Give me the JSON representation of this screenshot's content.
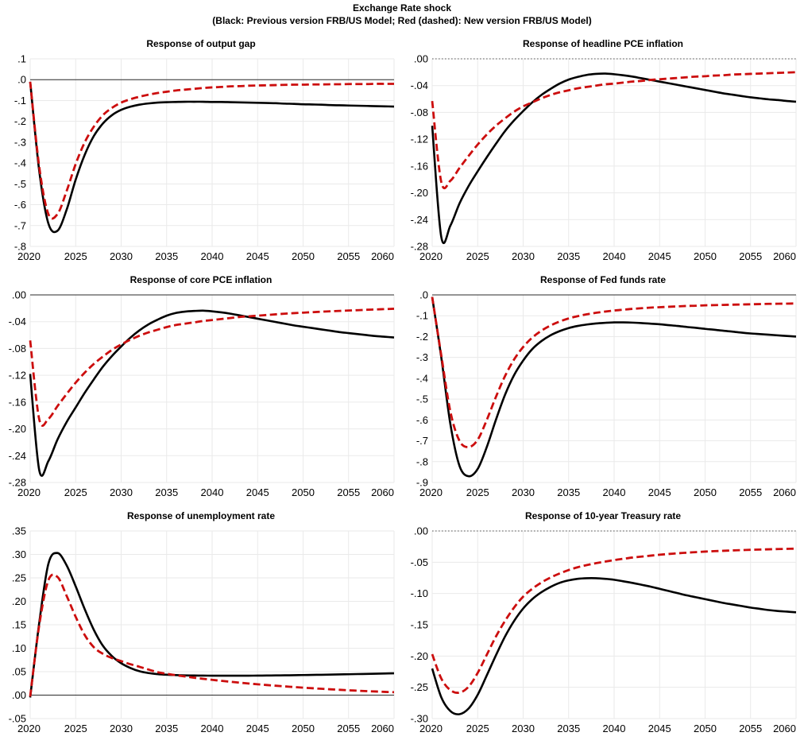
{
  "header": {
    "title": "Exchange Rate shock",
    "subtitle": "(Black: Previous version FRB/US Model; Red (dashed): New version FRB/US Model)"
  },
  "legend": {
    "black_series": "Previous version FRB/US Model",
    "red_series": "New version FRB/US Model"
  },
  "colors": {
    "previous_model": "#000000",
    "new_model": "#cc0e0e",
    "grid": "#eaeaea",
    "zero_solid": "#2b2b2b",
    "zero_dotted": "#8f8f8f"
  },
  "x_axis": {
    "start": 2020,
    "end": 2060,
    "step": 1,
    "tick_labels": [
      "2020",
      "2025",
      "2030",
      "2035",
      "2040",
      "2045",
      "2050",
      "2055",
      "2060"
    ],
    "tick_values": [
      2020,
      2025,
      2030,
      2035,
      2040,
      2045,
      2050,
      2055,
      2060
    ]
  },
  "chart_data": [
    {
      "type": "line",
      "title": "Response of output gap",
      "slug": "output-gap",
      "ylim": [
        -0.8,
        0.1
      ],
      "ytick_labels": [
        ".1",
        ".0",
        "-.1",
        "-.2",
        "-.3",
        "-.4",
        "-.5",
        "-.6",
        "-.7",
        "-.8"
      ],
      "ytick_values": [
        0.1,
        0.0,
        -0.1,
        -0.2,
        -0.3,
        -0.4,
        -0.5,
        -0.6,
        -0.7,
        -0.8
      ],
      "zeroline": "solid",
      "series": [
        {
          "name": "Previous version FRB/US Model",
          "style": "solid",
          "values": [
            -0.01,
            -0.44,
            -0.69,
            -0.725,
            -0.625,
            -0.48,
            -0.36,
            -0.27,
            -0.21,
            -0.17,
            -0.145,
            -0.13,
            -0.12,
            -0.114,
            -0.11,
            -0.108,
            -0.107,
            -0.106,
            -0.106,
            -0.106,
            -0.107,
            -0.107,
            -0.108,
            -0.109,
            -0.11,
            -0.111,
            -0.112,
            -0.113,
            -0.115,
            -0.116,
            -0.118,
            -0.119,
            -0.12,
            -0.122,
            -0.123,
            -0.124,
            -0.125,
            -0.126,
            -0.127,
            -0.128,
            -0.129
          ]
        },
        {
          "name": "New version FRB/US Model",
          "style": "dashed",
          "values": [
            -0.01,
            -0.42,
            -0.645,
            -0.645,
            -0.535,
            -0.405,
            -0.3,
            -0.225,
            -0.17,
            -0.135,
            -0.11,
            -0.094,
            -0.082,
            -0.072,
            -0.064,
            -0.058,
            -0.052,
            -0.048,
            -0.044,
            -0.04,
            -0.037,
            -0.035,
            -0.032,
            -0.031,
            -0.029,
            -0.028,
            -0.027,
            -0.026,
            -0.025,
            -0.024,
            -0.024,
            -0.023,
            -0.023,
            -0.022,
            -0.022,
            -0.021,
            -0.021,
            -0.021,
            -0.02,
            -0.02,
            -0.02
          ]
        }
      ]
    },
    {
      "type": "line",
      "title": "Response of headline PCE inflation",
      "slug": "headline-pce-inflation",
      "ylim": [
        -0.28,
        0.0
      ],
      "ytick_labels": [
        ".00",
        "-.04",
        "-.08",
        "-.12",
        "-.16",
        "-.20",
        "-.24",
        "-.28"
      ],
      "ytick_values": [
        0.0,
        -0.04,
        -0.08,
        -0.12,
        -0.16,
        -0.2,
        -0.24,
        -0.28
      ],
      "zeroline": "dotted",
      "series": [
        {
          "name": "Previous version FRB/US Model",
          "style": "solid",
          "values": [
            -0.1,
            -0.266,
            -0.249,
            -0.216,
            -0.19,
            -0.168,
            -0.147,
            -0.127,
            -0.108,
            -0.092,
            -0.078,
            -0.065,
            -0.054,
            -0.045,
            -0.037,
            -0.031,
            -0.027,
            -0.024,
            -0.0225,
            -0.022,
            -0.023,
            -0.0245,
            -0.0265,
            -0.029,
            -0.0315,
            -0.034,
            -0.0365,
            -0.039,
            -0.0415,
            -0.044,
            -0.0465,
            -0.049,
            -0.0515,
            -0.0535,
            -0.0555,
            -0.0575,
            -0.059,
            -0.0605,
            -0.0615,
            -0.063,
            -0.064
          ]
        },
        {
          "name": "New version FRB/US Model",
          "style": "dashed",
          "values": [
            -0.063,
            -0.184,
            -0.182,
            -0.163,
            -0.145,
            -0.128,
            -0.113,
            -0.1,
            -0.089,
            -0.079,
            -0.071,
            -0.065,
            -0.059,
            -0.054,
            -0.05,
            -0.047,
            -0.044,
            -0.042,
            -0.04,
            -0.038,
            -0.037,
            -0.0355,
            -0.034,
            -0.033,
            -0.0315,
            -0.0305,
            -0.0295,
            -0.0285,
            -0.0275,
            -0.0265,
            -0.026,
            -0.025,
            -0.0245,
            -0.0235,
            -0.023,
            -0.0225,
            -0.022,
            -0.0215,
            -0.021,
            -0.0205,
            -0.02
          ]
        }
      ]
    },
    {
      "type": "line",
      "title": "Response of core PCE inflation",
      "slug": "core-pce-inflation",
      "ylim": [
        -0.28,
        0.0
      ],
      "ytick_labels": [
        ".00",
        "-.04",
        "-.08",
        "-.12",
        "-.16",
        "-.20",
        "-.24",
        "-.28"
      ],
      "ytick_values": [
        0.0,
        -0.04,
        -0.08,
        -0.12,
        -0.16,
        -0.2,
        -0.24,
        -0.28
      ],
      "zeroline": "solid",
      "series": [
        {
          "name": "Previous version FRB/US Model",
          "style": "solid",
          "values": [
            -0.118,
            -0.262,
            -0.248,
            -0.216,
            -0.19,
            -0.168,
            -0.146,
            -0.126,
            -0.107,
            -0.091,
            -0.077,
            -0.064,
            -0.053,
            -0.044,
            -0.037,
            -0.031,
            -0.027,
            -0.025,
            -0.024,
            -0.0235,
            -0.0245,
            -0.026,
            -0.028,
            -0.0305,
            -0.033,
            -0.0355,
            -0.038,
            -0.0405,
            -0.043,
            -0.0455,
            -0.0475,
            -0.0495,
            -0.0515,
            -0.0535,
            -0.0555,
            -0.057,
            -0.0585,
            -0.06,
            -0.0615,
            -0.0625,
            -0.0635
          ]
        },
        {
          "name": "New version FRB/US Model",
          "style": "dashed",
          "values": [
            -0.068,
            -0.186,
            -0.185,
            -0.166,
            -0.148,
            -0.131,
            -0.116,
            -0.103,
            -0.092,
            -0.082,
            -0.074,
            -0.067,
            -0.061,
            -0.056,
            -0.052,
            -0.048,
            -0.045,
            -0.043,
            -0.041,
            -0.039,
            -0.0375,
            -0.036,
            -0.0345,
            -0.033,
            -0.032,
            -0.031,
            -0.03,
            -0.029,
            -0.028,
            -0.0272,
            -0.0265,
            -0.0258,
            -0.0251,
            -0.0245,
            -0.0239,
            -0.0233,
            -0.0228,
            -0.0222,
            -0.0217,
            -0.0212,
            -0.0207
          ]
        }
      ]
    },
    {
      "type": "line",
      "title": "Response of Fed funds rate",
      "slug": "fed-funds-rate",
      "ylim": [
        -0.9,
        0.0
      ],
      "ytick_labels": [
        ".0",
        "-.1",
        "-.2",
        "-.3",
        "-.4",
        "-.5",
        "-.6",
        "-.7",
        "-.8",
        "-.9"
      ],
      "ytick_values": [
        0.0,
        -0.1,
        -0.2,
        -0.3,
        -0.4,
        -0.5,
        -0.6,
        -0.7,
        -0.8,
        -0.9
      ],
      "zeroline": "solid",
      "series": [
        {
          "name": "Previous version FRB/US Model",
          "style": "solid",
          "values": [
            -0.01,
            -0.3,
            -0.62,
            -0.82,
            -0.87,
            -0.835,
            -0.73,
            -0.6,
            -0.48,
            -0.385,
            -0.315,
            -0.26,
            -0.222,
            -0.194,
            -0.174,
            -0.159,
            -0.149,
            -0.142,
            -0.137,
            -0.134,
            -0.132,
            -0.132,
            -0.133,
            -0.135,
            -0.138,
            -0.141,
            -0.145,
            -0.149,
            -0.154,
            -0.158,
            -0.163,
            -0.167,
            -0.172,
            -0.176,
            -0.181,
            -0.185,
            -0.188,
            -0.191,
            -0.194,
            -0.197,
            -0.2
          ]
        },
        {
          "name": "New version FRB/US Model",
          "style": "dashed",
          "values": [
            -0.01,
            -0.29,
            -0.56,
            -0.7,
            -0.73,
            -0.695,
            -0.6,
            -0.49,
            -0.39,
            -0.31,
            -0.25,
            -0.205,
            -0.172,
            -0.147,
            -0.128,
            -0.113,
            -0.102,
            -0.093,
            -0.086,
            -0.08,
            -0.075,
            -0.071,
            -0.067,
            -0.064,
            -0.061,
            -0.059,
            -0.057,
            -0.055,
            -0.053,
            -0.052,
            -0.05,
            -0.049,
            -0.048,
            -0.047,
            -0.046,
            -0.045,
            -0.044,
            -0.043,
            -0.0425,
            -0.042,
            -0.041
          ]
        }
      ]
    },
    {
      "type": "line",
      "title": "Response of unemployment rate",
      "slug": "unemployment-rate",
      "ylim": [
        -0.05,
        0.35
      ],
      "ytick_labels": [
        ".35",
        ".30",
        ".25",
        ".20",
        ".15",
        ".10",
        ".05",
        ".00",
        "-.05"
      ],
      "ytick_values": [
        0.35,
        0.3,
        0.25,
        0.2,
        0.15,
        0.1,
        0.05,
        0.0,
        -0.05
      ],
      "zeroline": "solid",
      "series": [
        {
          "name": "Previous version FRB/US Model",
          "style": "solid",
          "values": [
            -0.005,
            0.155,
            0.28,
            0.303,
            0.277,
            0.232,
            0.183,
            0.139,
            0.105,
            0.083,
            0.068,
            0.058,
            0.051,
            0.047,
            0.0448,
            0.0435,
            0.0427,
            0.0421,
            0.0418,
            0.0416,
            0.0415,
            0.0414,
            0.0414,
            0.0414,
            0.0415,
            0.0416,
            0.0418,
            0.042,
            0.0422,
            0.0425,
            0.0428,
            0.0431,
            0.0434,
            0.0437,
            0.0441,
            0.0445,
            0.0449,
            0.0453,
            0.0457,
            0.0461,
            0.0465
          ]
        },
        {
          "name": "New version FRB/US Model",
          "style": "dashed",
          "values": [
            -0.003,
            0.15,
            0.245,
            0.252,
            0.212,
            0.167,
            0.128,
            0.102,
            0.088,
            0.079,
            0.0725,
            0.066,
            0.0605,
            0.0545,
            0.049,
            0.0455,
            0.0425,
            0.0398,
            0.0372,
            0.0348,
            0.0326,
            0.0305,
            0.0285,
            0.0266,
            0.0248,
            0.0231,
            0.0215,
            0.02,
            0.0186,
            0.0172,
            0.0159,
            0.0147,
            0.0135,
            0.0124,
            0.0113,
            0.0103,
            0.0094,
            0.0085,
            0.0077,
            0.0069,
            0.0062
          ]
        }
      ]
    },
    {
      "type": "line",
      "title": "Response of 10-year Treasury rate",
      "slug": "10-year-treasury-rate",
      "ylim": [
        -0.3,
        0.0
      ],
      "ytick_labels": [
        ".00",
        "-.05",
        "-.10",
        "-.15",
        "-.20",
        "-.25",
        "-.30"
      ],
      "ytick_values": [
        0.0,
        -0.05,
        -0.1,
        -0.15,
        -0.2,
        -0.25,
        -0.3
      ],
      "zeroline": "dotted",
      "series": [
        {
          "name": "Previous version FRB/US Model",
          "style": "solid",
          "values": [
            -0.22,
            -0.266,
            -0.288,
            -0.293,
            -0.284,
            -0.262,
            -0.231,
            -0.199,
            -0.169,
            -0.144,
            -0.124,
            -0.109,
            -0.098,
            -0.0895,
            -0.083,
            -0.079,
            -0.0765,
            -0.0755,
            -0.0755,
            -0.0765,
            -0.078,
            -0.0805,
            -0.083,
            -0.086,
            -0.089,
            -0.0925,
            -0.096,
            -0.0995,
            -0.103,
            -0.106,
            -0.109,
            -0.112,
            -0.115,
            -0.1175,
            -0.12,
            -0.1225,
            -0.1245,
            -0.1265,
            -0.128,
            -0.129,
            -0.13
          ]
        },
        {
          "name": "New version FRB/US Model",
          "style": "dashed",
          "values": [
            -0.197,
            -0.236,
            -0.2545,
            -0.2585,
            -0.249,
            -0.227,
            -0.198,
            -0.169,
            -0.144,
            -0.1225,
            -0.105,
            -0.0925,
            -0.0825,
            -0.0745,
            -0.068,
            -0.0625,
            -0.058,
            -0.0545,
            -0.0515,
            -0.049,
            -0.0465,
            -0.0445,
            -0.0425,
            -0.041,
            -0.0395,
            -0.038,
            -0.0368,
            -0.0357,
            -0.0347,
            -0.0338,
            -0.033,
            -0.0323,
            -0.0317,
            -0.0311,
            -0.0306,
            -0.0301,
            -0.0297,
            -0.0293,
            -0.0289,
            -0.0286,
            -0.0283
          ]
        }
      ]
    }
  ]
}
